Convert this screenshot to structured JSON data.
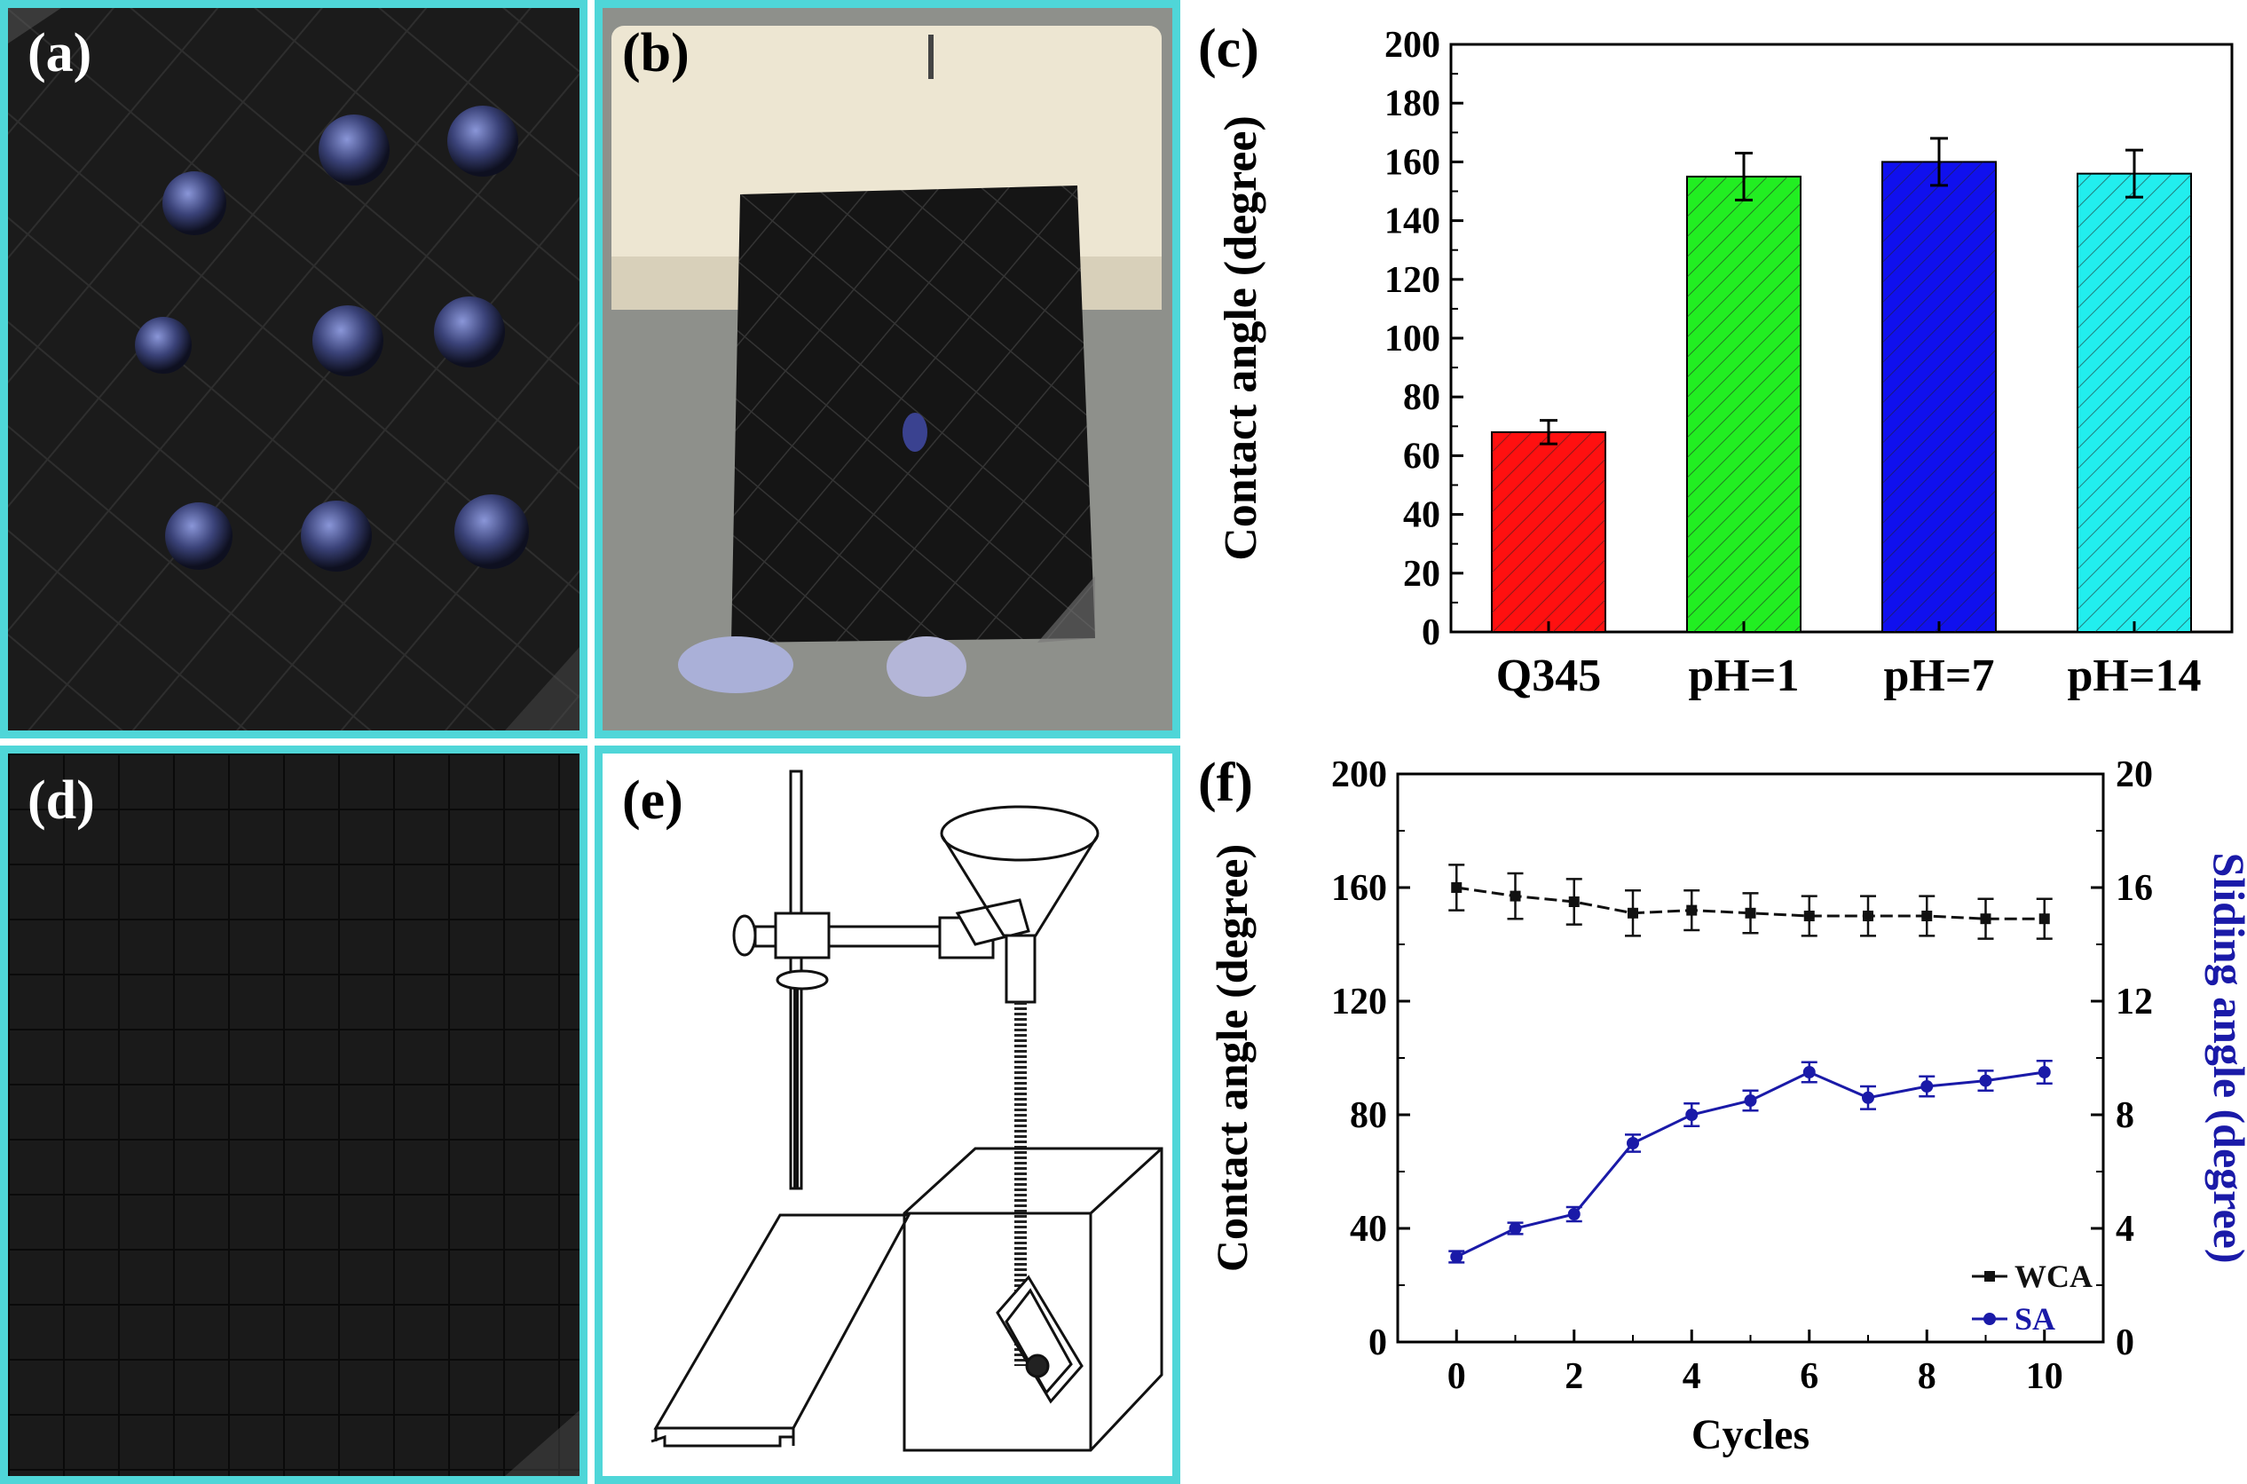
{
  "panels": {
    "a": {
      "label": "(a)"
    },
    "b": {
      "label": "(b)"
    },
    "c": {
      "label": "(c)"
    },
    "d": {
      "label": "(d)"
    },
    "e": {
      "label": "(e)"
    },
    "f": {
      "label": "(f)"
    }
  },
  "colors": {
    "panel_border": "#4fd6d8",
    "bar_q345": "#ff1010",
    "bar_ph1": "#22ee22",
    "bar_ph7": "#1010ee",
    "bar_ph14": "#22eeee",
    "wca_line": "#111111",
    "sa_line": "#1a1aa8"
  },
  "chart_data": [
    {
      "type": "bar",
      "panel": "c",
      "categories": [
        "Q345",
        "pH=1",
        "pH=7",
        "pH=14"
      ],
      "values": [
        68,
        155,
        160,
        156
      ],
      "errors": [
        4,
        8,
        8,
        8
      ],
      "ylabel": "Contact angle (degree)",
      "xlabel": "",
      "ylim": [
        0,
        200
      ],
      "yticks": [
        0,
        20,
        40,
        60,
        80,
        100,
        120,
        140,
        160,
        180,
        200
      ],
      "hatch": true
    },
    {
      "type": "line",
      "panel": "f",
      "x": [
        0,
        1,
        2,
        3,
        4,
        5,
        6,
        7,
        8,
        9,
        10
      ],
      "xlabel": "Cycles",
      "xticks": [
        0,
        2,
        4,
        6,
        8,
        10
      ],
      "xlim": [
        -1,
        11
      ],
      "series": [
        {
          "name": "WCA",
          "axis": "left",
          "values": [
            160,
            157,
            155,
            151,
            152,
            151,
            150,
            150,
            150,
            149,
            149
          ],
          "errors": [
            8,
            8,
            8,
            8,
            7,
            7,
            7,
            7,
            7,
            7,
            7
          ]
        },
        {
          "name": "SA",
          "axis": "right",
          "values": [
            3.0,
            4.0,
            4.5,
            7.0,
            8.0,
            8.5,
            9.5,
            8.6,
            9.0,
            9.2,
            9.5
          ],
          "errors": [
            0.2,
            0.2,
            0.25,
            0.3,
            0.4,
            0.35,
            0.35,
            0.4,
            0.35,
            0.35,
            0.4
          ]
        }
      ],
      "ylabel_left": "Contact angle (degree)",
      "ylim_left": [
        0,
        200
      ],
      "yticks_left": [
        0,
        40,
        80,
        120,
        160,
        200
      ],
      "ylabel_right": "Sliding angle (degree)",
      "ylim_right": [
        0,
        20
      ],
      "yticks_right": [
        0,
        4,
        8,
        12,
        16,
        20
      ],
      "legend_position": "bottom-right"
    }
  ]
}
